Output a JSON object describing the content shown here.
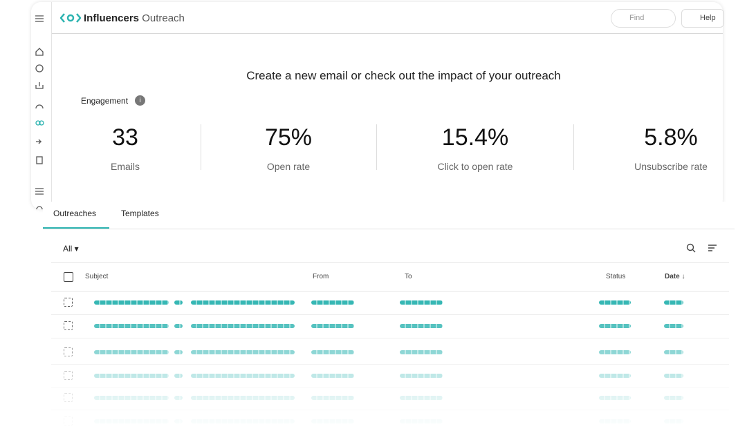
{
  "header": {
    "brand": "Influencers",
    "brand_suffix": "Outreach",
    "search_placeholder": "Find",
    "help": "Help"
  },
  "headline": "Create a new email or check out the impact of your outreach",
  "engagement": {
    "title": "Engagement",
    "stats": [
      {
        "value": "33",
        "label": "Emails"
      },
      {
        "value": "75%",
        "label": "Open rate"
      },
      {
        "value": "15.4%",
        "label": "Click to open rate"
      },
      {
        "value": "5.8%",
        "label": "Unsubscribe rate"
      }
    ]
  },
  "tabs": [
    "Outreaches",
    "Templates"
  ],
  "filter": "All",
  "table": {
    "columns": [
      "Subject",
      "From",
      "To",
      "Status",
      "Date"
    ]
  }
}
